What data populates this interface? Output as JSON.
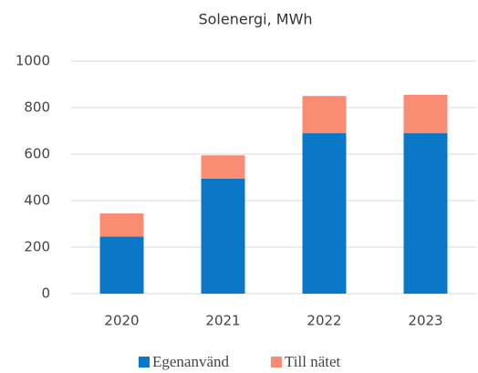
{
  "chart_data": {
    "type": "bar",
    "stacked": true,
    "title": "Solenergi,  MWh",
    "categories": [
      "2020",
      "2021",
      "2022",
      "2023"
    ],
    "series": [
      {
        "name": "Egenanvänd",
        "color": "#0a77c7",
        "values": [
          245,
          495,
          690,
          690
        ]
      },
      {
        "name": "Till nätet",
        "color": "#fa8c74",
        "values": [
          100,
          100,
          160,
          165
        ]
      }
    ],
    "ylim": [
      0,
      1000
    ],
    "yticks": [
      0,
      200,
      400,
      600,
      800,
      1000
    ],
    "grid": true,
    "legend": "bottom"
  }
}
